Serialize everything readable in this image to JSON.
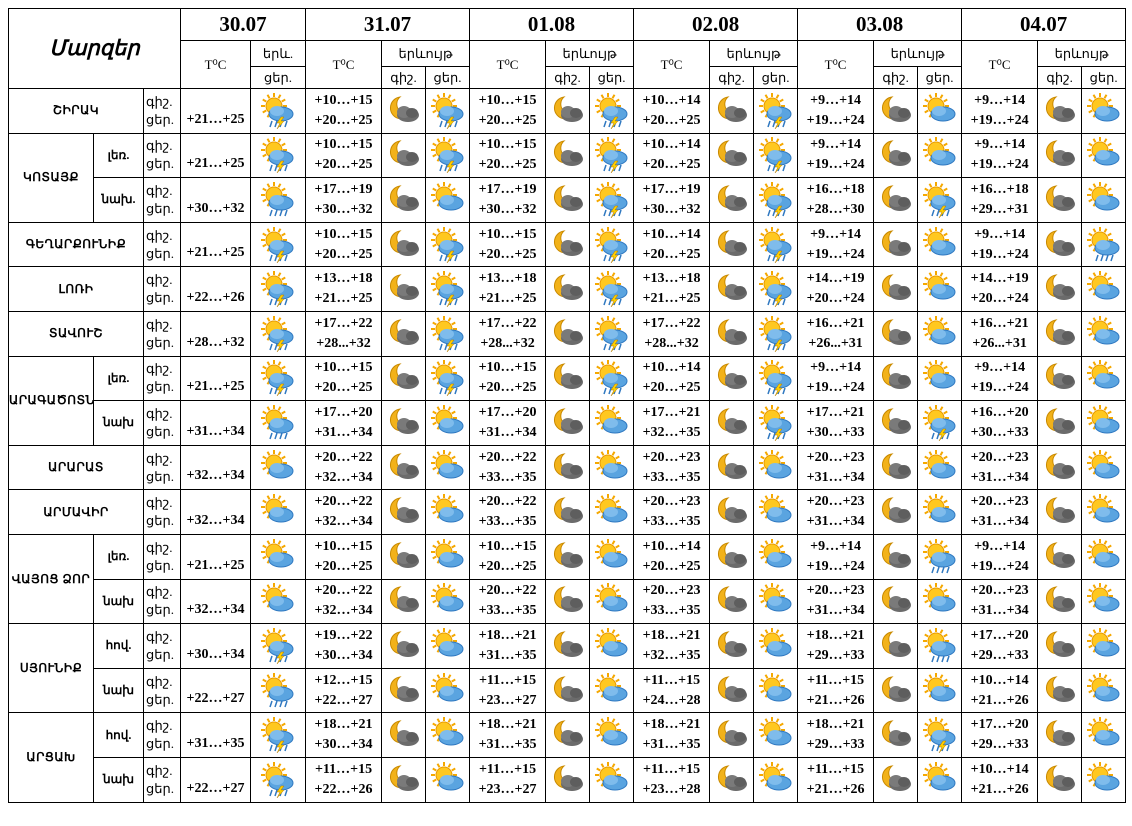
{
  "header": {
    "title": "Մարզեր",
    "dates": [
      {
        "date": "30.07",
        "temp": "T⁰C",
        "phen": "երև.",
        "day": "ցեր."
      },
      {
        "date": "31.07",
        "temp": "T⁰C",
        "phen": "երևույթ",
        "night": "գիշ.",
        "day": "ցեր."
      },
      {
        "date": "01.08",
        "temp": "T⁰C",
        "phen": "երևույթ",
        "night": "գիշ.",
        "day": "ցեր."
      },
      {
        "date": "02.08",
        "temp": "T⁰C",
        "phen": "երևույթ",
        "night": "գիշ.",
        "day": "ցեր."
      },
      {
        "date": "03.08",
        "temp": "T⁰C",
        "phen": "երևույթ",
        "night": "գիշ.",
        "day": "ցեր."
      },
      {
        "date": "04.07",
        "temp": "T⁰C",
        "phen": "երևույթ",
        "night": "գիշ.",
        "day": "ցեր."
      }
    ]
  },
  "regions": [
    {
      "name": "ՇԻՐԱԿ",
      "rows": [
        {
          "labels": [
            "գիշ.",
            "ցեր."
          ],
          "forecast": [
            {
              "day": "+21…+25"
            },
            {
              "night": "+10…+15",
              "day": "+20…+25"
            },
            {
              "night": "+10…+15",
              "day": "+20…+25"
            },
            {
              "night": "+10…+14",
              "day": "+20…+25"
            },
            {
              "night": "+9…+14",
              "day": "+19…+24"
            },
            {
              "night": "+9…+14",
              "day": "+19…+24"
            }
          ]
        }
      ]
    },
    {
      "name": "ԿՈՏԱՅՔ",
      "rows": [
        {
          "sub": "լեռ.",
          "labels": [
            "գիշ.",
            "ցեր."
          ],
          "forecast": [
            {
              "day": "+21…+25"
            },
            {
              "night": "+10…+15",
              "day": "+20…+25"
            },
            {
              "night": "+10…+15",
              "day": "+20…+25"
            },
            {
              "night": "+10…+14",
              "day": "+20…+25"
            },
            {
              "night": "+9…+14",
              "day": "+19…+24"
            },
            {
              "night": "+9…+14",
              "day": "+19…+24"
            }
          ]
        },
        {
          "sub": "նախ.",
          "labels": [
            "գիշ.",
            "ցեր."
          ],
          "forecast": [
            {
              "day": "+30…+32"
            },
            {
              "night": "+17…+19",
              "day": "+30…+32"
            },
            {
              "night": "+17…+19",
              "day": "+30…+32"
            },
            {
              "night": "+17…+19",
              "day": "+30…+32"
            },
            {
              "night": "+16…+18",
              "day": "+28…+30"
            },
            {
              "night": "+16…+18",
              "day": "+29…+31"
            }
          ]
        }
      ]
    },
    {
      "name": "ԳԵՂԱՐՔՈՒՆԻՔ",
      "rows": [
        {
          "labels": [
            "գիշ.",
            "ցեր."
          ],
          "forecast": [
            {
              "day": "+21…+25"
            },
            {
              "night": "+10…+15",
              "day": "+20…+25"
            },
            {
              "night": "+10…+15",
              "day": "+20…+25"
            },
            {
              "night": "+10…+14",
              "day": "+20…+25"
            },
            {
              "night": "+9…+14",
              "day": "+19…+24"
            },
            {
              "night": "+9…+14",
              "day": "+19…+24"
            }
          ]
        }
      ]
    },
    {
      "name": "ԼՈՌԻ",
      "rows": [
        {
          "labels": [
            "գիշ.",
            "ցեր."
          ],
          "forecast": [
            {
              "day": "+22…+26"
            },
            {
              "night": "+13…+18",
              "day": "+21…+25"
            },
            {
              "night": "+13…+18",
              "day": "+21…+25"
            },
            {
              "night": "+13…+18",
              "day": "+21…+25"
            },
            {
              "night": "+14…+19",
              "day": "+20…+24"
            },
            {
              "night": "+14…+19",
              "day": "+20…+24"
            }
          ]
        }
      ]
    },
    {
      "name": "ՏԱՎՈՒՇ",
      "rows": [
        {
          "labels": [
            "գիշ.",
            "ցեր."
          ],
          "forecast": [
            {
              "day": "+28…+32"
            },
            {
              "night": "+17…+22",
              "day": "+28...+32"
            },
            {
              "night": "+17…+22",
              "day": "+28...+32"
            },
            {
              "night": "+17…+22",
              "day": "+28...+32"
            },
            {
              "night": "+16…+21",
              "day": "+26...+31"
            },
            {
              "night": "+16…+21",
              "day": "+26...+31"
            }
          ]
        }
      ]
    },
    {
      "name": "ԱՐԱԳԱԾՈՏՆ",
      "rows": [
        {
          "sub": "լեռ.",
          "labels": [
            "գիշ.",
            "ցեր."
          ],
          "forecast": [
            {
              "day": "+21…+25"
            },
            {
              "night": "+10…+15",
              "day": "+20…+25"
            },
            {
              "night": "+10…+15",
              "day": "+20…+25"
            },
            {
              "night": "+10…+14",
              "day": "+20…+25"
            },
            {
              "night": "+9…+14",
              "day": "+19…+24"
            },
            {
              "night": "+9…+14",
              "day": "+19…+24"
            }
          ]
        },
        {
          "sub": "նախ",
          "labels": [
            "գիշ.",
            "ցեր."
          ],
          "forecast": [
            {
              "day": "+31…+34"
            },
            {
              "night": "+17…+20",
              "day": "+31…+34"
            },
            {
              "night": "+17…+20",
              "day": "+31…+34"
            },
            {
              "night": "+17…+21",
              "day": "+32…+35"
            },
            {
              "night": "+17…+21",
              "day": "+30…+33"
            },
            {
              "night": "+16…+20",
              "day": "+30…+33"
            }
          ]
        }
      ]
    },
    {
      "name": "ԱՐԱՐԱՏ",
      "rows": [
        {
          "labels": [
            "գիշ.",
            "ցեր."
          ],
          "forecast": [
            {
              "day": "+32…+34"
            },
            {
              "night": "+20…+22",
              "day": "+32…+34"
            },
            {
              "night": "+20…+22",
              "day": "+33…+35"
            },
            {
              "night": "+20…+23",
              "day": "+33…+35"
            },
            {
              "night": "+20…+23",
              "day": "+31…+34"
            },
            {
              "night": "+20…+23",
              "day": "+31…+34"
            }
          ]
        }
      ]
    },
    {
      "name": "ԱՐՄԱՎԻՐ",
      "rows": [
        {
          "labels": [
            "գիշ.",
            "ցեր."
          ],
          "forecast": [
            {
              "day": "+32…+34"
            },
            {
              "night": "+20…+22",
              "day": "+32…+34"
            },
            {
              "night": "+20…+22",
              "day": "+33…+35"
            },
            {
              "night": "+20…+23",
              "day": "+33…+35"
            },
            {
              "night": "+20…+23",
              "day": "+31…+34"
            },
            {
              "night": "+20…+23",
              "day": "+31…+34"
            }
          ]
        }
      ]
    },
    {
      "name": "ՎԱՅՈՑ ՁՈՐ",
      "rows": [
        {
          "sub": "լեռ.",
          "labels": [
            "գիշ.",
            "ցեր."
          ],
          "forecast": [
            {
              "day": "+21…+25"
            },
            {
              "night": "+10…+15",
              "day": "+20…+25"
            },
            {
              "night": "+10…+15",
              "day": "+20…+25"
            },
            {
              "night": "+10…+14",
              "day": "+20…+25"
            },
            {
              "night": "+9…+14",
              "day": "+19…+24"
            },
            {
              "night": "+9…+14",
              "day": "+19…+24"
            }
          ]
        },
        {
          "sub": "նախ",
          "labels": [
            "գիշ.",
            "ցեր."
          ],
          "forecast": [
            {
              "day": "+32…+34"
            },
            {
              "night": "+20…+22",
              "day": "+32…+34"
            },
            {
              "night": "+20…+22",
              "day": "+33…+35"
            },
            {
              "night": "+20…+23",
              "day": "+33…+35"
            },
            {
              "night": "+20…+23",
              "day": "+31…+34"
            },
            {
              "night": "+20…+23",
              "day": "+31…+34"
            }
          ]
        }
      ]
    },
    {
      "name": "ՍՅՈՒՆԻՔ",
      "rows": [
        {
          "sub": "հով.",
          "labels": [
            "գիշ.",
            "ցեր."
          ],
          "forecast": [
            {
              "day": "+30…+34"
            },
            {
              "night": "+19…+22",
              "day": "+30…+34"
            },
            {
              "night": "+18…+21",
              "day": "+31…+35"
            },
            {
              "night": "+18…+21",
              "day": "+32…+35"
            },
            {
              "night": "+18…+21",
              "day": "+29…+33"
            },
            {
              "night": "+17…+20",
              "day": "+29…+33"
            }
          ]
        },
        {
          "sub": "նախ",
          "labels": [
            "գիշ.",
            "ցեր."
          ],
          "forecast": [
            {
              "day": "+22…+27"
            },
            {
              "night": "+12…+15",
              "day": "+22…+27"
            },
            {
              "night": "+11…+15",
              "day": "+23…+27"
            },
            {
              "night": "+11…+15",
              "day": "+24…+28"
            },
            {
              "night": "+11…+15",
              "day": "+21…+26"
            },
            {
              "night": "+10…+14",
              "day": "+21…+26"
            }
          ]
        }
      ]
    },
    {
      "name": "ԱՐՑԱԽ",
      "rows": [
        {
          "sub": "հով.",
          "labels": [
            "գիշ.",
            "ցեր."
          ],
          "forecast": [
            {
              "day": "+31…+35"
            },
            {
              "night": "+18…+21",
              "day": "+30…+34"
            },
            {
              "night": "+18…+21",
              "day": "+31…+35"
            },
            {
              "night": "+18…+21",
              "day": "+31…+35"
            },
            {
              "night": "+18…+21",
              "day": "+29…+33"
            },
            {
              "night": "+17…+20",
              "day": "+29…+33"
            }
          ]
        },
        {
          "sub": "նախ",
          "labels": [
            "գիշ.",
            "ցեր."
          ],
          "forecast": [
            {
              "day": "+22…+27"
            },
            {
              "night": "+11…+15",
              "day": "+22…+26"
            },
            {
              "night": "+11…+15",
              "day": "+23…+27"
            },
            {
              "night": "+11…+15",
              "day": "+23…+28"
            },
            {
              "night": "+11…+15",
              "day": "+21…+26"
            },
            {
              "night": "+10…+14",
              "day": "+21…+26"
            }
          ]
        }
      ]
    }
  ]
}
